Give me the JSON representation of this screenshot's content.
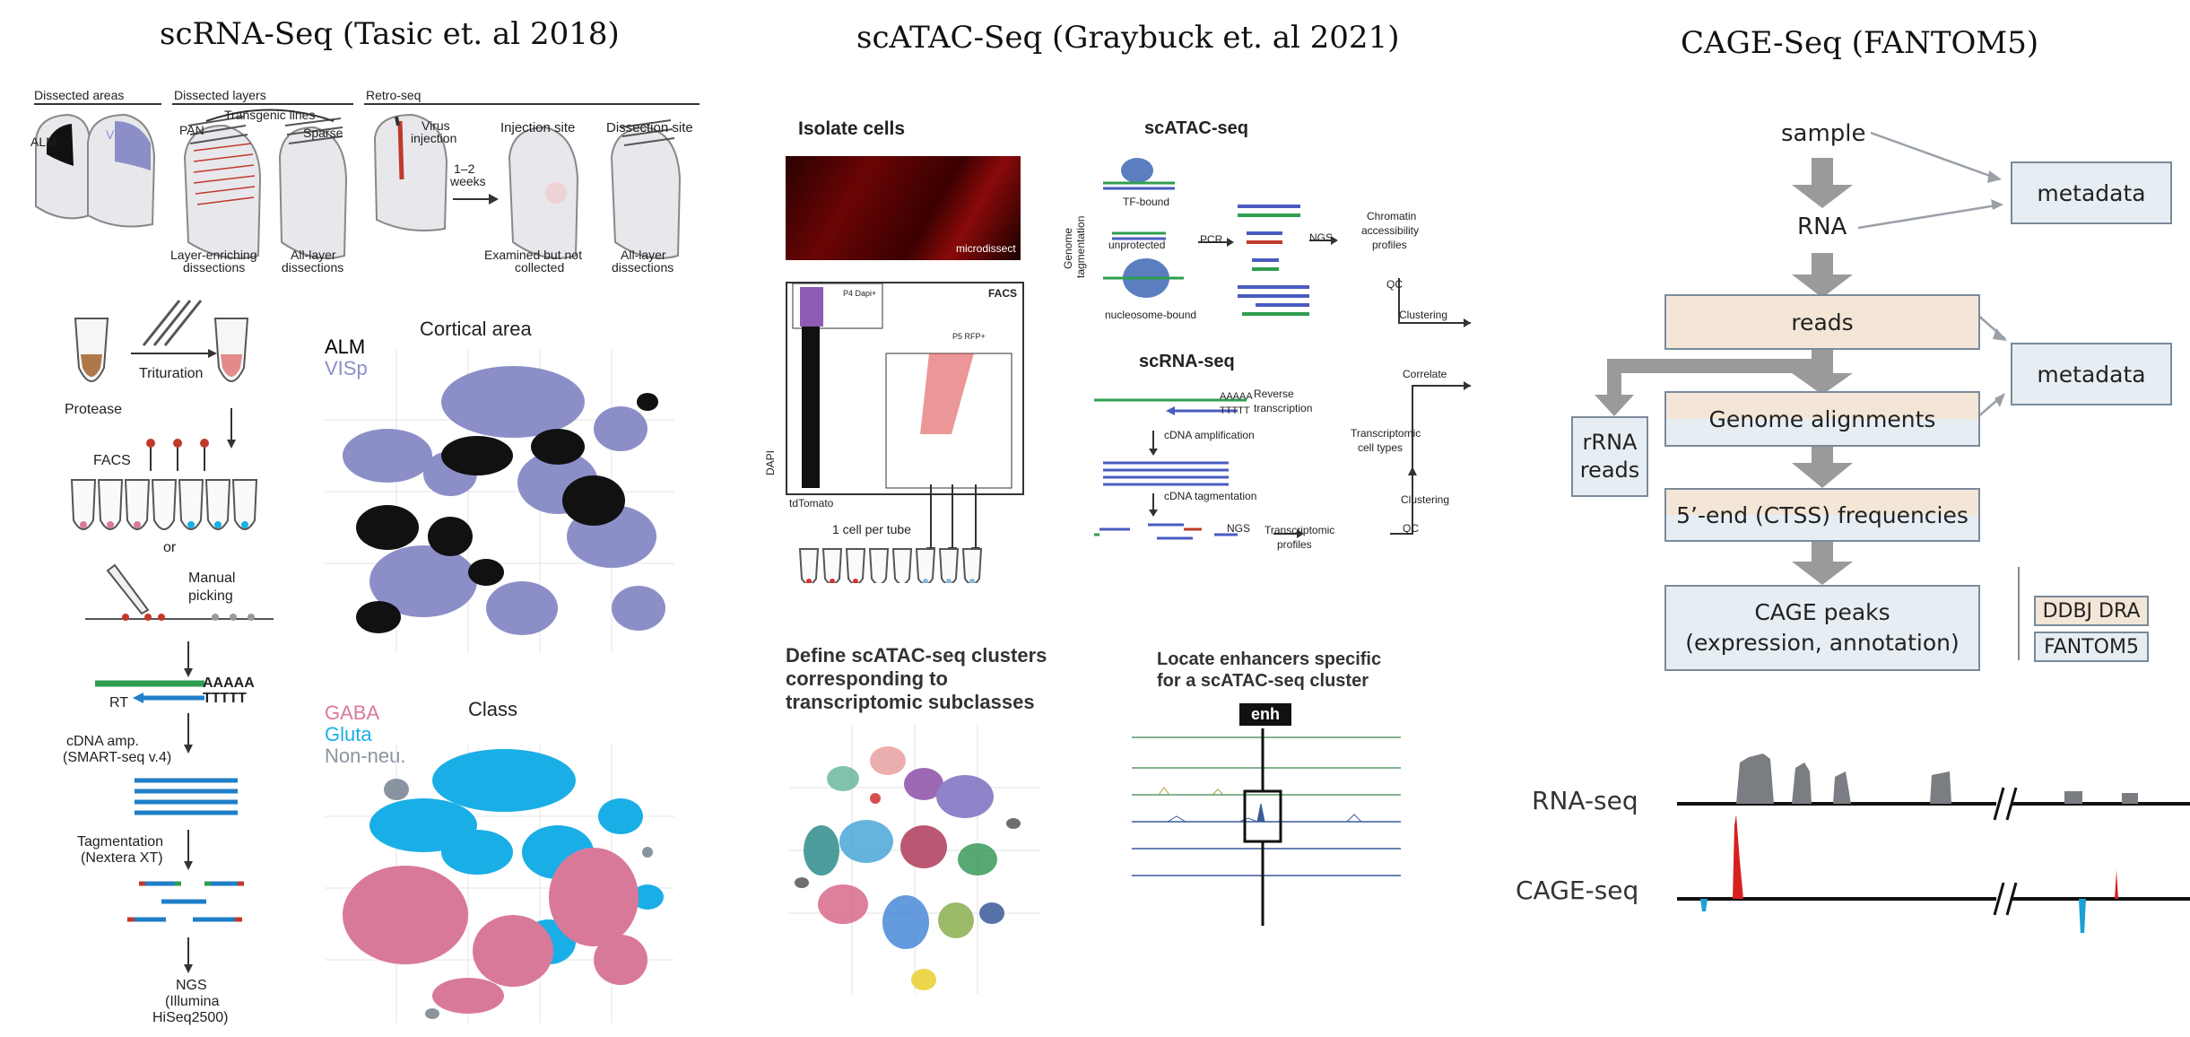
{
  "titles": {
    "left": "scRNA-Seq (Tasic et. al 2018)",
    "middle": "scATAC-Seq (Graybuck et. al 2021)",
    "right": "CAGE-Seq (FANTOM5)"
  },
  "scrna": {
    "headers": [
      "Dissected areas",
      "Dissected layers",
      "Retro-seq"
    ],
    "alm": "ALM",
    "visp": "VISp",
    "transgenic_lines": "Transgenic lines",
    "pan": "PAN",
    "sparse": "Sparse",
    "virus_injection_1": "Virus",
    "virus_injection_2": "injection",
    "weeks_1": "1–2",
    "weeks_2": "weeks",
    "injection_site": "Injection site",
    "dissection_site": "Dissection site",
    "layer_enriching_1": "Layer-enriching",
    "layer_enriching_2": "dissections",
    "all_layer_1": "All-layer",
    "all_layer_2": "dissections",
    "examined_1": "Examined but not",
    "examined_2": "collected",
    "all_layer_b_1": "All-layer",
    "all_layer_b_2": "dissections",
    "protease": "Protease",
    "trituration": "Trituration",
    "facs": "FACS",
    "or": "or",
    "manual_1": "Manual",
    "manual_2": "picking",
    "polya": "AAAAA",
    "polyt": "TTTTT",
    "rt": "RT",
    "cdna_1": "cDNA amp.",
    "cdna_2": "(SMART-seq v.4)",
    "tag_1": "Tagmentation",
    "tag_2": "(Nextera XT)",
    "ngs_1": "NGS",
    "ngs_2": "(Illumina",
    "ngs_3": "HiSeq2500)",
    "cortical_title": "Cortical area",
    "legend_alm": "ALM",
    "legend_visp": "VISp",
    "class_title": "Class",
    "legend_gaba": "GABA",
    "legend_gluta": "Gluta",
    "legend_nonneu": "Non-neu."
  },
  "scatac": {
    "isolate": "Isolate cells",
    "microdissect": "microdissect",
    "facs": "FACS",
    "p4": "P4 Dapi+",
    "p5": "P5 RFP+",
    "dapi": "DAPI",
    "tdtomato": "tdTomato",
    "one_cell": "1 cell per tube",
    "scatac_title": "scATAC-seq",
    "genome_tag_1": "Genome",
    "genome_tag_2": "tagmentation",
    "tf_bound": "TF-bound",
    "unprotected": "unprotected",
    "nucleosome": "nucleosome-bound",
    "pcr": "PCR",
    "ngs": "NGS",
    "chromatin_1": "Chromatin",
    "chromatin_2": "accessibility",
    "chromatin_3": "profiles",
    "qc": "QC",
    "clustering": "Clustering",
    "correlate": "Correlate",
    "scrna_title": "scRNA-seq",
    "polya": "AAAAA",
    "polyt": "TTTTT",
    "reverse_1": "Reverse",
    "reverse_2": "transcription",
    "cdna_amp": "cDNA amplification",
    "cdna_tag": "cDNA tagmentation",
    "ngs2": "NGS",
    "transcriptomic_1": "Transcriptomic",
    "transcriptomic_2": "profiles",
    "cell_types_1": "Transcriptomic",
    "cell_types_2": "cell types",
    "clustering2": "Clustering",
    "qc2": "QC",
    "define_1": "Define scATAC-seq clusters",
    "define_2": "corresponding to",
    "define_3": "transcriptomic subclasses",
    "locate_1": "Locate enhancers specific",
    "locate_2": "for a scATAC-seq cluster",
    "enh": "enh"
  },
  "cage": {
    "sample": "sample",
    "rna": "RNA",
    "metadata_1": "metadata",
    "metadata_2": "metadata",
    "reads": "reads",
    "genome_alignments": "Genome alignments",
    "rrna_1": "rRNA",
    "rrna_2": "reads",
    "ctss": "5’-end (CTSS) frequencies",
    "peaks_1": "CAGE peaks",
    "peaks_2": "(expression, annotation)",
    "ddbj": "DDBJ DRA",
    "fantom5": "FANTOM5",
    "rna_seq": "RNA-seq",
    "cage_seq": "CAGE-seq"
  },
  "colors": {
    "alm": "#000000",
    "visp": "#8c8fc7",
    "gaba": "#d9799a",
    "gluta": "#1aaee6",
    "nonneu": "#8a94a0",
    "box_beige": "#f3e6d6",
    "box_blue": "#e6eef3",
    "arrow_gray": "#9a9a9a"
  }
}
